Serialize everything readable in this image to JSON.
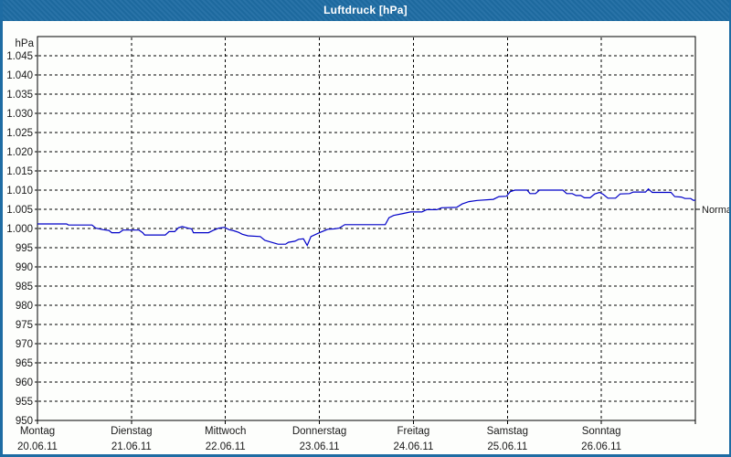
{
  "window": {
    "title": "Luftdruck [hPa]"
  },
  "colors": {
    "titlebar": "#1e6ca3",
    "frame": "#1e6ca3",
    "background": "#fdfefc",
    "grid": "#000000",
    "axis": "#000000",
    "text": "#1a1a1a",
    "series_line": "#0000c8",
    "title_text": "#ffffff"
  },
  "chart_data": {
    "type": "line",
    "title": "Luftdruck [hPa]",
    "ylabel": "hPa",
    "grid": "dashed",
    "y_axis": {
      "min": 950,
      "max": 1050,
      "tick_step": 5,
      "ticks": [
        {
          "v": 1045,
          "label": "1.045"
        },
        {
          "v": 1040,
          "label": "1.040"
        },
        {
          "v": 1035,
          "label": "1.035"
        },
        {
          "v": 1030,
          "label": "1.030"
        },
        {
          "v": 1025,
          "label": "1.025"
        },
        {
          "v": 1020,
          "label": "1.020"
        },
        {
          "v": 1015,
          "label": "1.015"
        },
        {
          "v": 1010,
          "label": "1.010"
        },
        {
          "v": 1005,
          "label": "1.005"
        },
        {
          "v": 1000,
          "label": "1.000"
        },
        {
          "v": 995,
          "label": "995"
        },
        {
          "v": 990,
          "label": "990"
        },
        {
          "v": 985,
          "label": "985"
        },
        {
          "v": 980,
          "label": "980"
        },
        {
          "v": 975,
          "label": "975"
        },
        {
          "v": 970,
          "label": "970"
        },
        {
          "v": 965,
          "label": "965"
        },
        {
          "v": 960,
          "label": "960"
        },
        {
          "v": 955,
          "label": "955"
        },
        {
          "v": 950,
          "label": "950"
        }
      ]
    },
    "x_axis": {
      "min_days": 0,
      "max_days": 7,
      "ticks": [
        {
          "t": 0,
          "day": "Montag",
          "date": "20.06.11"
        },
        {
          "t": 1,
          "day": "Dienstag",
          "date": "21.06.11"
        },
        {
          "t": 2,
          "day": "Mittwoch",
          "date": "22.06.11"
        },
        {
          "t": 3,
          "day": "Donnerstag",
          "date": "23.06.11"
        },
        {
          "t": 4,
          "day": "Freitag",
          "date": "24.06.11"
        },
        {
          "t": 5,
          "day": "Samstag",
          "date": "25.06.11"
        },
        {
          "t": 6,
          "day": "Sonntag",
          "date": "26.06.11"
        }
      ]
    },
    "annotation": {
      "label": "Normal",
      "value": 1005
    },
    "series": [
      {
        "name": "Luftdruck",
        "points": [
          [
            0.0,
            1001.2
          ],
          [
            0.31,
            1001.2
          ],
          [
            0.33,
            1000.9
          ],
          [
            0.58,
            1000.9
          ],
          [
            0.62,
            1000.1
          ],
          [
            0.7,
            999.7
          ],
          [
            0.76,
            999.5
          ],
          [
            0.79,
            998.9
          ],
          [
            0.87,
            998.9
          ],
          [
            0.91,
            999.6
          ],
          [
            1.08,
            999.6
          ],
          [
            1.12,
            998.9
          ],
          [
            1.14,
            998.3
          ],
          [
            1.36,
            998.3
          ],
          [
            1.4,
            999.2
          ],
          [
            1.46,
            999.2
          ],
          [
            1.5,
            1000.2
          ],
          [
            1.54,
            1000.5
          ],
          [
            1.6,
            1000.1
          ],
          [
            1.64,
            999.9
          ],
          [
            1.66,
            998.9
          ],
          [
            1.82,
            998.9
          ],
          [
            1.87,
            999.5
          ],
          [
            1.93,
            1000.1
          ],
          [
            1.99,
            1000.3
          ],
          [
            2.04,
            999.7
          ],
          [
            2.09,
            999.4
          ],
          [
            2.14,
            999.0
          ],
          [
            2.18,
            998.5
          ],
          [
            2.24,
            998.1
          ],
          [
            2.37,
            997.9
          ],
          [
            2.42,
            996.9
          ],
          [
            2.49,
            996.4
          ],
          [
            2.56,
            995.9
          ],
          [
            2.64,
            995.9
          ],
          [
            2.67,
            996.4
          ],
          [
            2.74,
            996.7
          ],
          [
            2.78,
            997.2
          ],
          [
            2.83,
            997.3
          ],
          [
            2.87,
            995.6
          ],
          [
            2.91,
            997.9
          ],
          [
            3.0,
            998.9
          ],
          [
            3.09,
            999.8
          ],
          [
            3.16,
            999.9
          ],
          [
            3.21,
            1000.1
          ],
          [
            3.27,
            1001.0
          ],
          [
            3.7,
            1001.0
          ],
          [
            3.74,
            1002.8
          ],
          [
            3.79,
            1003.4
          ],
          [
            3.89,
            1003.9
          ],
          [
            3.97,
            1004.3
          ],
          [
            4.09,
            1004.3
          ],
          [
            4.14,
            1004.9
          ],
          [
            4.25,
            1004.9
          ],
          [
            4.3,
            1005.4
          ],
          [
            4.46,
            1005.5
          ],
          [
            4.52,
            1006.4
          ],
          [
            4.59,
            1007.0
          ],
          [
            4.68,
            1007.3
          ],
          [
            4.85,
            1007.6
          ],
          [
            4.91,
            1008.3
          ],
          [
            4.99,
            1008.4
          ],
          [
            5.03,
            1009.6
          ],
          [
            5.08,
            1010.0
          ],
          [
            5.21,
            1010.0
          ],
          [
            5.24,
            1009.1
          ],
          [
            5.3,
            1009.1
          ],
          [
            5.34,
            1010.0
          ],
          [
            5.59,
            1010.0
          ],
          [
            5.63,
            1009.1
          ],
          [
            5.69,
            1009.1
          ],
          [
            5.73,
            1008.6
          ],
          [
            5.78,
            1008.6
          ],
          [
            5.82,
            1008.0
          ],
          [
            5.88,
            1008.0
          ],
          [
            5.93,
            1009.0
          ],
          [
            5.98,
            1009.4
          ],
          [
            6.02,
            1008.9
          ],
          [
            6.07,
            1007.9
          ],
          [
            6.15,
            1007.9
          ],
          [
            6.2,
            1009.0
          ],
          [
            6.3,
            1009.1
          ],
          [
            6.34,
            1009.5
          ],
          [
            6.47,
            1009.5
          ],
          [
            6.5,
            1010.3
          ],
          [
            6.54,
            1009.4
          ],
          [
            6.74,
            1009.4
          ],
          [
            6.78,
            1008.3
          ],
          [
            6.85,
            1008.2
          ],
          [
            6.89,
            1007.8
          ],
          [
            6.95,
            1007.8
          ],
          [
            6.98,
            1007.3
          ],
          [
            7.0,
            1007.4
          ]
        ]
      }
    ]
  }
}
